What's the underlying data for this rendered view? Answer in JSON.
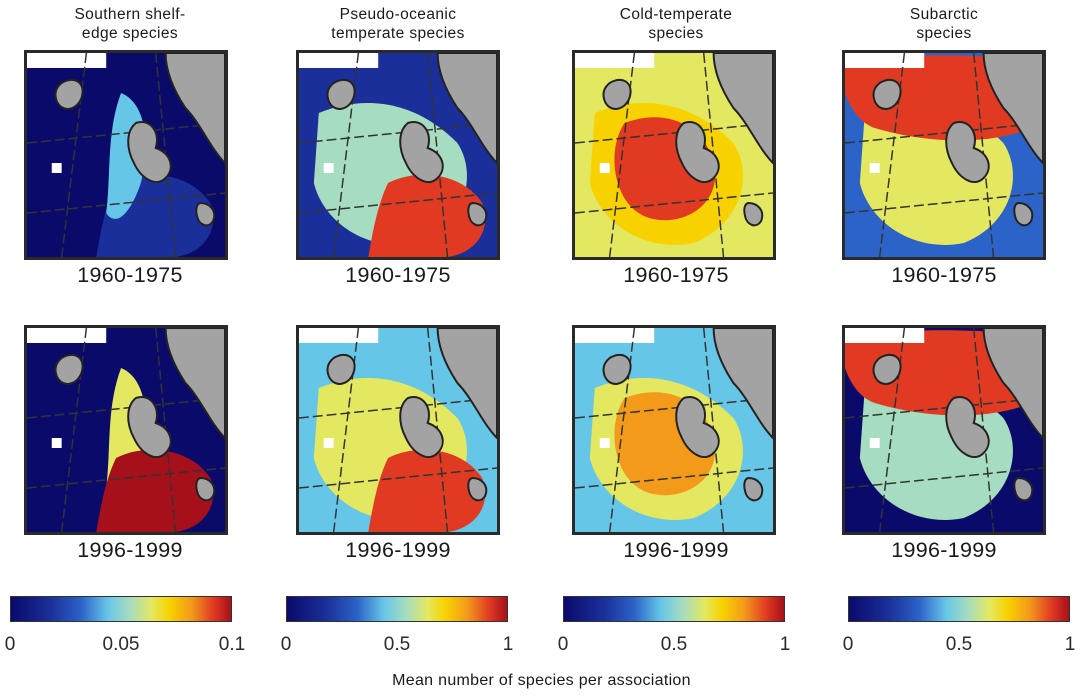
{
  "chart_data": {
    "type": "heatmap",
    "columns": [
      {
        "title": "Southern shelf-edge species",
        "title_lines": [
          "Southern shelf-",
          "edge species"
        ],
        "clim": [
          0,
          0.1
        ],
        "ticks": [
          "0",
          "0.05",
          "0.1"
        ]
      },
      {
        "title": "Pseudo-oceanic temperate species",
        "title_lines": [
          "Pseudo-oceanic",
          "temperate species"
        ],
        "clim": [
          0,
          1
        ],
        "ticks": [
          "0",
          "0.5",
          "1"
        ]
      },
      {
        "title": "Cold-temperate species",
        "title_lines": [
          "Cold-temperate",
          "species"
        ],
        "clim": [
          0,
          1
        ],
        "ticks": [
          "0",
          "0.5",
          "1"
        ]
      },
      {
        "title": "Subarctic species",
        "title_lines": [
          "Subarctic",
          "species"
        ],
        "clim": [
          0,
          1
        ],
        "ticks": [
          "0",
          "0.5",
          "1"
        ]
      }
    ],
    "periods": [
      "1960-1975",
      "1996-1999"
    ],
    "colorbar_label": "Mean number of species per association",
    "colormap": [
      "#0a0a6b",
      "#1b2f9a",
      "#2c63c8",
      "#66c6e8",
      "#a6dcc0",
      "#e4e860",
      "#f8d200",
      "#f39a1b",
      "#e03a22",
      "#a6101a"
    ],
    "land_color": "#a3a3a3",
    "panels": [
      {
        "column": 0,
        "period": "1960-1975",
        "regions": [
          {
            "level": 0.08,
            "shape": "south-east-coast"
          },
          {
            "level": 0.35,
            "shape": "strait-band"
          },
          {
            "level": 0.0,
            "shape": "background"
          }
        ]
      },
      {
        "column": 1,
        "period": "1960-1975",
        "regions": [
          {
            "level": 0.15,
            "shape": "background"
          },
          {
            "level": 0.45,
            "shape": "central-band"
          },
          {
            "level": 0.88,
            "shape": "south-east-coast"
          }
        ]
      },
      {
        "column": 2,
        "period": "1960-1975",
        "regions": [
          {
            "level": 0.5,
            "shape": "background"
          },
          {
            "level": 0.7,
            "shape": "central-band"
          },
          {
            "level": 0.9,
            "shape": "central-blob"
          }
        ]
      },
      {
        "column": 3,
        "period": "1960-1975",
        "regions": [
          {
            "level": 0.2,
            "shape": "background"
          },
          {
            "level": 0.55,
            "shape": "central-band"
          },
          {
            "level": 0.9,
            "shape": "north-band"
          }
        ]
      },
      {
        "column": 0,
        "period": "1996-1999",
        "regions": [
          {
            "level": 0.05,
            "shape": "background"
          },
          {
            "level": 0.6,
            "shape": "strait-band"
          },
          {
            "level": 0.95,
            "shape": "south-east-coast"
          }
        ]
      },
      {
        "column": 1,
        "period": "1996-1999",
        "regions": [
          {
            "level": 0.3,
            "shape": "background"
          },
          {
            "level": 0.6,
            "shape": "central-band"
          },
          {
            "level": 0.92,
            "shape": "south-east-coast"
          }
        ]
      },
      {
        "column": 2,
        "period": "1996-1999",
        "regions": [
          {
            "level": 0.3,
            "shape": "background"
          },
          {
            "level": 0.5,
            "shape": "central-band"
          },
          {
            "level": 0.8,
            "shape": "central-blob"
          }
        ]
      },
      {
        "column": 3,
        "period": "1996-1999",
        "regions": [
          {
            "level": 0.05,
            "shape": "background"
          },
          {
            "level": 0.45,
            "shape": "central-band"
          },
          {
            "level": 0.9,
            "shape": "north-band"
          }
        ]
      }
    ]
  }
}
